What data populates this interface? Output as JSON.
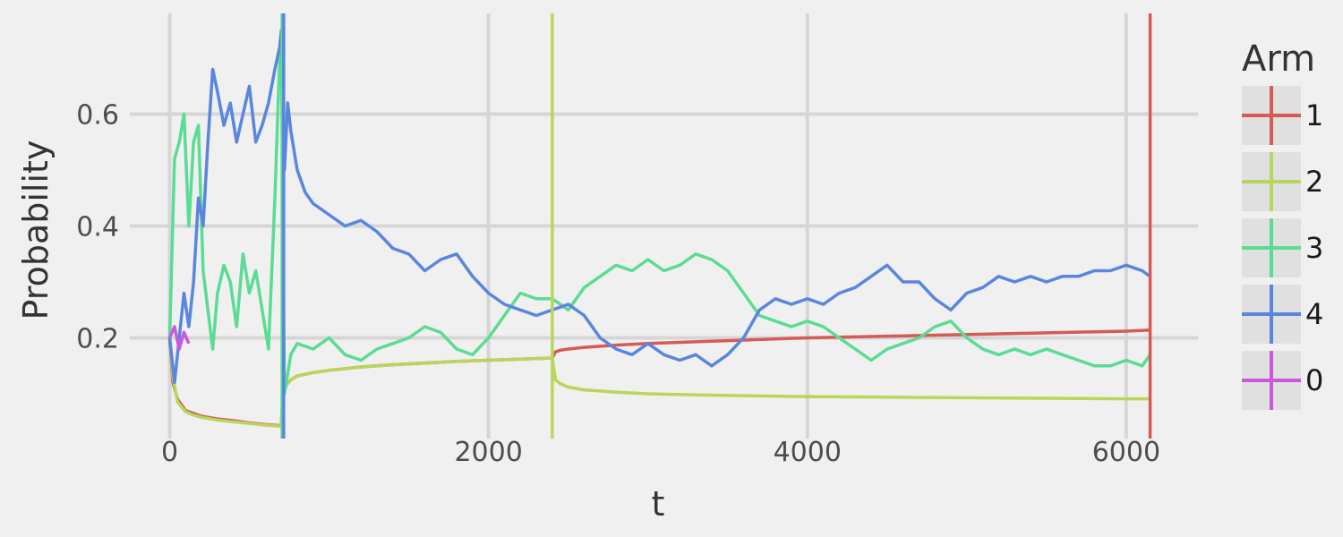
{
  "chart_data": {
    "type": "line",
    "title": "",
    "xlabel": "t",
    "ylabel": "Probability",
    "xlim": [
      -250,
      6450
    ],
    "ylim": [
      0.02,
      0.78
    ],
    "x_ticks": [
      0,
      2000,
      4000,
      6000
    ],
    "x_tick_labels": [
      "0",
      "2000",
      "4000",
      "6000"
    ],
    "y_ticks": [
      0.2,
      0.4,
      0.6
    ],
    "y_tick_labels": [
      "0.2",
      "0.4",
      "0.6"
    ],
    "grid": true,
    "legend": {
      "title": "Arm",
      "position": "right",
      "entries": [
        {
          "label": "1",
          "color": "#d65a55"
        },
        {
          "label": "2",
          "color": "#b8d659"
        },
        {
          "label": "3",
          "color": "#5bdc94"
        },
        {
          "label": "4",
          "color": "#5a86de"
        },
        {
          "label": "0",
          "color": "#cc59dc"
        }
      ]
    },
    "series": [
      {
        "name": "1",
        "color": "#d65a55",
        "x": [
          0,
          20,
          50,
          100,
          150,
          200,
          300,
          400,
          500,
          600,
          700,
          710,
          730,
          760,
          800,
          900,
          1000,
          1200,
          1400,
          1600,
          1800,
          2000,
          2200,
          2400,
          2420,
          2450,
          2500,
          2600,
          2800,
          3000,
          3500,
          4000,
          4500,
          5000,
          5500,
          6000,
          6150
        ],
        "y": [
          0.2,
          0.12,
          0.09,
          0.07,
          0.065,
          0.06,
          0.055,
          0.052,
          0.048,
          0.045,
          0.043,
          0.1,
          0.115,
          0.125,
          0.132,
          0.138,
          0.142,
          0.148,
          0.152,
          0.155,
          0.158,
          0.16,
          0.162,
          0.164,
          0.175,
          0.178,
          0.18,
          0.183,
          0.187,
          0.19,
          0.195,
          0.2,
          0.203,
          0.206,
          0.209,
          0.212,
          0.214
        ]
      },
      {
        "name": "2",
        "color": "#b8d659",
        "x": [
          0,
          20,
          50,
          100,
          150,
          200,
          300,
          400,
          500,
          600,
          700,
          710,
          730,
          760,
          800,
          900,
          1000,
          1200,
          1400,
          1600,
          1800,
          2000,
          2200,
          2400,
          2420,
          2450,
          2500,
          2600,
          2800,
          3000,
          3500,
          4000,
          4500,
          5000,
          5500,
          6000,
          6150
        ],
        "y": [
          0.2,
          0.13,
          0.085,
          0.068,
          0.062,
          0.058,
          0.053,
          0.05,
          0.047,
          0.044,
          0.042,
          0.1,
          0.115,
          0.125,
          0.132,
          0.138,
          0.142,
          0.148,
          0.152,
          0.155,
          0.158,
          0.16,
          0.162,
          0.164,
          0.125,
          0.118,
          0.112,
          0.107,
          0.103,
          0.1,
          0.097,
          0.095,
          0.094,
          0.093,
          0.092,
          0.091,
          0.091
        ]
      },
      {
        "name": "3",
        "color": "#5bdc94",
        "x": [
          0,
          30,
          60,
          90,
          120,
          150,
          180,
          210,
          240,
          270,
          300,
          340,
          380,
          420,
          460,
          500,
          540,
          580,
          620,
          660,
          690,
          700,
          720,
          760,
          800,
          900,
          1000,
          1100,
          1200,
          1300,
          1400,
          1500,
          1600,
          1700,
          1800,
          1900,
          2000,
          2100,
          2200,
          2300,
          2400,
          2500,
          2600,
          2700,
          2800,
          2900,
          3000,
          3100,
          3200,
          3300,
          3400,
          3500,
          3600,
          3700,
          3800,
          3900,
          4000,
          4100,
          4200,
          4300,
          4400,
          4500,
          4600,
          4700,
          4800,
          4900,
          5000,
          5100,
          5200,
          5300,
          5400,
          5500,
          5600,
          5700,
          5800,
          5900,
          6000,
          6100,
          6150
        ],
        "y": [
          0.2,
          0.52,
          0.55,
          0.6,
          0.4,
          0.55,
          0.58,
          0.32,
          0.25,
          0.18,
          0.28,
          0.33,
          0.3,
          0.22,
          0.35,
          0.28,
          0.32,
          0.25,
          0.18,
          0.45,
          0.7,
          0.74,
          0.1,
          0.17,
          0.19,
          0.18,
          0.2,
          0.17,
          0.16,
          0.18,
          0.19,
          0.2,
          0.22,
          0.21,
          0.18,
          0.17,
          0.2,
          0.24,
          0.28,
          0.27,
          0.27,
          0.25,
          0.29,
          0.31,
          0.33,
          0.32,
          0.34,
          0.32,
          0.33,
          0.35,
          0.34,
          0.32,
          0.28,
          0.24,
          0.23,
          0.22,
          0.23,
          0.22,
          0.2,
          0.18,
          0.16,
          0.18,
          0.19,
          0.2,
          0.22,
          0.23,
          0.2,
          0.18,
          0.17,
          0.18,
          0.17,
          0.18,
          0.17,
          0.16,
          0.15,
          0.15,
          0.16,
          0.15,
          0.17
        ]
      },
      {
        "name": "4",
        "color": "#5a86de",
        "x": [
          0,
          30,
          60,
          90,
          120,
          150,
          180,
          210,
          240,
          270,
          300,
          340,
          380,
          420,
          460,
          500,
          540,
          580,
          620,
          660,
          690,
          700,
          720,
          740,
          760,
          800,
          850,
          900,
          1000,
          1100,
          1200,
          1300,
          1400,
          1500,
          1600,
          1700,
          1800,
          1900,
          2000,
          2100,
          2200,
          2300,
          2400,
          2500,
          2600,
          2700,
          2800,
          2900,
          3000,
          3100,
          3200,
          3300,
          3400,
          3500,
          3600,
          3700,
          3800,
          3900,
          4000,
          4100,
          4200,
          4300,
          4400,
          4500,
          4600,
          4700,
          4800,
          4900,
          5000,
          5100,
          5200,
          5300,
          5400,
          5500,
          5600,
          5700,
          5800,
          5900,
          6000,
          6100,
          6150
        ],
        "y": [
          0.2,
          0.12,
          0.2,
          0.28,
          0.22,
          0.3,
          0.45,
          0.4,
          0.55,
          0.68,
          0.64,
          0.58,
          0.62,
          0.55,
          0.6,
          0.65,
          0.55,
          0.58,
          0.62,
          0.68,
          0.72,
          0.75,
          0.5,
          0.62,
          0.57,
          0.5,
          0.46,
          0.44,
          0.42,
          0.4,
          0.41,
          0.39,
          0.36,
          0.35,
          0.32,
          0.34,
          0.35,
          0.31,
          0.28,
          0.26,
          0.25,
          0.24,
          0.25,
          0.26,
          0.24,
          0.2,
          0.18,
          0.17,
          0.19,
          0.17,
          0.16,
          0.17,
          0.15,
          0.17,
          0.2,
          0.25,
          0.27,
          0.26,
          0.27,
          0.26,
          0.28,
          0.29,
          0.31,
          0.33,
          0.3,
          0.3,
          0.27,
          0.25,
          0.28,
          0.29,
          0.31,
          0.3,
          0.31,
          0.3,
          0.31,
          0.31,
          0.32,
          0.32,
          0.33,
          0.32,
          0.31
        ]
      },
      {
        "name": "0",
        "color": "#cc59dc",
        "x": [
          0,
          30,
          60,
          90,
          120
        ],
        "y": [
          0.2,
          0.22,
          0.18,
          0.21,
          0.19
        ]
      }
    ],
    "vertical_lines": [
      {
        "series": "3",
        "x": 705,
        "color": "#5bdc94"
      },
      {
        "series": "4",
        "x": 715,
        "color": "#5a86de"
      },
      {
        "series": "2",
        "x": 2400,
        "color": "#b8d659"
      },
      {
        "series": "1",
        "x": 6150,
        "color": "#d65a55"
      }
    ]
  }
}
